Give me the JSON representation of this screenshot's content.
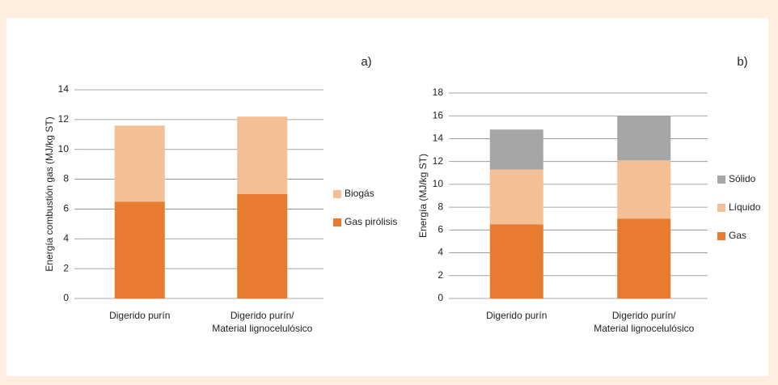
{
  "chart_data": [
    {
      "type": "bar",
      "stacked": true,
      "label": "a)",
      "ylabel": "Energía combustión gas (MJ/kg ST)",
      "categories": [
        [
          "Digerido purín"
        ],
        [
          "Digerido purín/",
          "Material lignocelulósico"
        ]
      ],
      "series": [
        {
          "name": "Gas pirólisis",
          "color": "#e87b2f",
          "values": [
            6.5,
            7.0
          ]
        },
        {
          "name": "Biogás",
          "color": "#f5bf96",
          "values": [
            5.1,
            5.2
          ]
        }
      ],
      "ylim": [
        0,
        14
      ],
      "yticks": [
        0,
        2,
        4,
        6,
        8,
        10,
        12,
        14
      ],
      "grid": true,
      "legend": "right"
    },
    {
      "type": "bar",
      "stacked": true,
      "label": "b)",
      "ylabel": "Energía (MJ/kg ST)",
      "categories": [
        [
          "Digerido purín"
        ],
        [
          "Digerido purín/",
          "Material lignocelulósico"
        ]
      ],
      "series": [
        {
          "name": "Gas",
          "color": "#e87b2f",
          "values": [
            6.5,
            7.0
          ]
        },
        {
          "name": "Líquido",
          "color": "#f5bf96",
          "values": [
            4.8,
            5.1
          ]
        },
        {
          "name": "Sólido",
          "color": "#a6a6a6",
          "values": [
            3.5,
            3.9
          ]
        }
      ],
      "ylim": [
        0,
        18
      ],
      "yticks": [
        0,
        2,
        4,
        6,
        8,
        10,
        12,
        14,
        16,
        18
      ],
      "grid": true,
      "legend": "right"
    }
  ]
}
